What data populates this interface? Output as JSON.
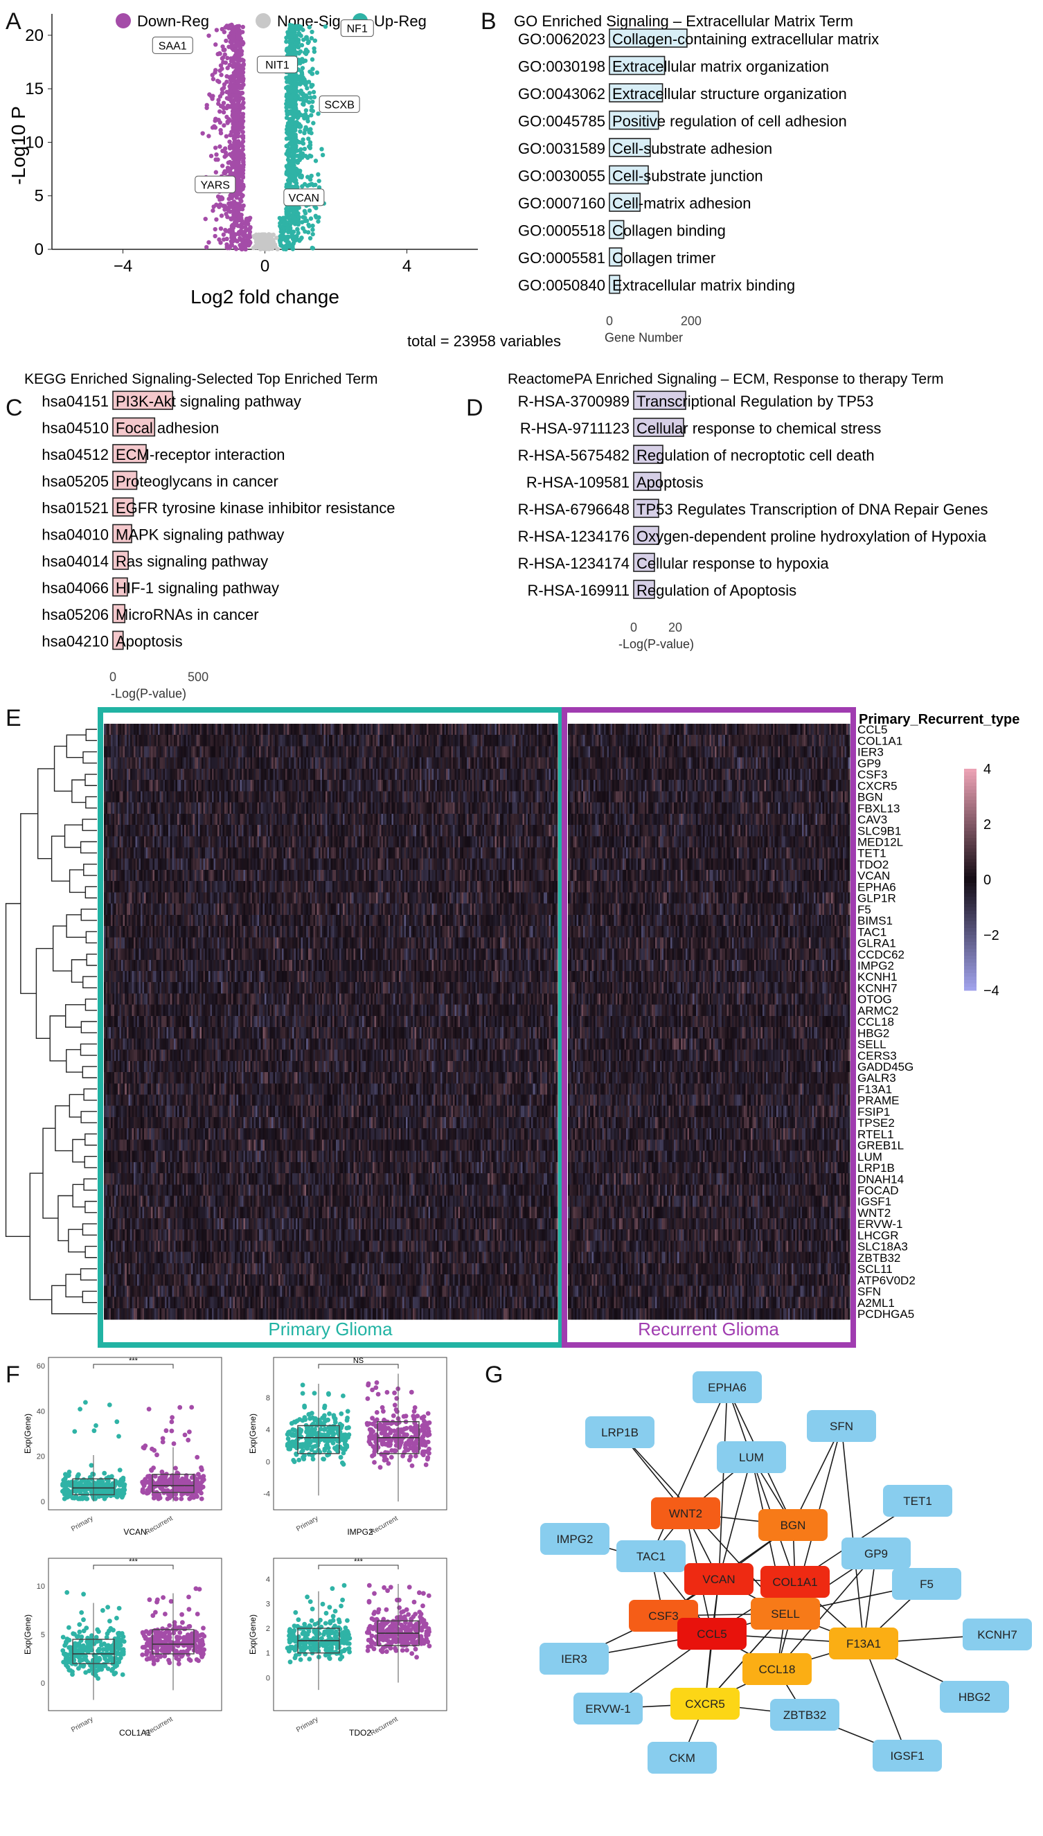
{
  "colors": {
    "down": "#a44ca8",
    "none": "#c8c8c8",
    "up": "#2fb3a6",
    "go_bar": "#d8eef6",
    "kegg_bar": "#f4c8cc",
    "reactome_bar": "#d6cfe6",
    "primary_border": "#21b3a3",
    "recurrent_border": "#a03cb0",
    "net_node_low": "#88cdee",
    "net_node_high": "#e8120c",
    "net_node_mid": "#f77a18",
    "net_node_yellow": "#fcd616"
  },
  "panels": {
    "a": "A",
    "b": "B",
    "c": "C",
    "d": "D",
    "e": "E",
    "f": "F",
    "g": "G"
  },
  "chart_data": [
    {
      "id": "A",
      "type": "scatter",
      "legend": [
        "Down-Reg",
        "None-Sig",
        "Up-Reg"
      ],
      "legend_position": "top",
      "xlabel": "Log2 fold change",
      "ylabel": "-Log10 P",
      "xlim": [
        -6,
        6
      ],
      "ylim": [
        0,
        22
      ],
      "xticks": [
        -4,
        0,
        4
      ],
      "yticks": [
        0,
        5,
        10,
        15,
        20
      ],
      "note": "total = 23958 variables",
      "labels": [
        {
          "gene": "SAA1",
          "x": -2.6,
          "y": 19.0
        },
        {
          "gene": "NIT1",
          "x": 0.35,
          "y": 17.2
        },
        {
          "gene": "NF1",
          "x": 2.6,
          "y": 20.6
        },
        {
          "gene": "SCXB",
          "x": 2.1,
          "y": 13.5
        },
        {
          "gene": "YARS",
          "x": -1.4,
          "y": 6.0
        },
        {
          "gene": "VCAN",
          "x": 1.1,
          "y": 4.8
        }
      ]
    },
    {
      "id": "B",
      "type": "bar",
      "title": "GO Enriched Signaling – Extracellular Matrix Term",
      "xlabel": "Gene Number",
      "xticks": [
        0,
        200
      ],
      "xlim": [
        0,
        280
      ],
      "categories": [
        "GO:0062023",
        "GO:0030198",
        "GO:0043062",
        "GO:0045785",
        "GO:0031589",
        "GO:0030055",
        "GO:0007160",
        "GO:0005518",
        "GO:0005581",
        "GO:0050840"
      ],
      "terms": [
        "Collagen-containing extracellular matrix",
        "Extracellular matrix organization",
        "Extracellular structure organization",
        "Positive regulation of cell adhesion",
        "Cell-substrate adhesion",
        "Cell-substrate junction",
        "Cell-matrix adhesion",
        "Collagen binding",
        "Collagen trimer",
        "Extracellular matrix binding"
      ],
      "values": [
        190,
        135,
        130,
        120,
        100,
        95,
        75,
        35,
        30,
        25
      ]
    },
    {
      "id": "C",
      "type": "bar",
      "title": "KEGG Enriched Signaling-Selected Top Enriched Term",
      "xlabel": "-Log(P-value)",
      "xticks": [
        0,
        500
      ],
      "xlim": [
        0,
        650
      ],
      "categories": [
        "hsa04151",
        "hsa04510",
        "hsa04512",
        "hsa05205",
        "hsa01521",
        "hsa04010",
        "hsa04014",
        "hsa04066",
        "hsa05206",
        "hsa04210"
      ],
      "terms": [
        "PI3K-Akt signaling pathway",
        "Focal adhesion",
        "ECM-receptor interaction",
        "Proteoglycans in cancer",
        "EGFR tyrosine kinase inhibitor resistance",
        "MAPK signaling pathway",
        "Ras signaling pathway",
        "HIF-1 signaling pathway",
        "MicroRNAs in cancer",
        "Apoptosis"
      ],
      "values": [
        350,
        245,
        195,
        140,
        120,
        110,
        90,
        85,
        70,
        60
      ]
    },
    {
      "id": "D",
      "type": "bar",
      "title": "ReactomePA Enriched Signaling – ECM, Response to therapy Term",
      "xlabel": "-Log(P-value)",
      "xticks": [
        0,
        20
      ],
      "xlim": [
        0,
        30
      ],
      "categories": [
        "R-HSA-3700989",
        "R-HSA-9711123",
        "R-HSA-5675482",
        "R-HSA-109581",
        "R-HSA-6796648",
        "R-HSA-1234176",
        "R-HSA-1234174",
        "R-HSA-169911"
      ],
      "terms": [
        "Transcriptional Regulation by TP53",
        "Cellular response to chemical stress",
        "Regulation of necroptotic cell death",
        "Apoptosis",
        "TP53 Regulates Transcription of DNA Repair Genes",
        "Oxygen-dependent proline hydroxylation of Hypoxia",
        "Cellular response to hypoxia",
        "Regulation of Apoptosis"
      ],
      "values": [
        25,
        24,
        14,
        13,
        12,
        12,
        10,
        10
      ]
    },
    {
      "id": "E",
      "type": "heatmap",
      "annotation_title": "Primary_Recurrent_type",
      "groups": [
        "Primary Glioma",
        "Recurrent Glioma"
      ],
      "colorbar_ticks": [
        4,
        2,
        0,
        -2,
        -4
      ],
      "genes": [
        "CCL5",
        "COL1A1",
        "IER3",
        "GP9",
        "CSF3",
        "CXCR5",
        "BGN",
        "FBXL13",
        "CAV3",
        "SLC9B1",
        "MED12L",
        "TET1",
        "TDO2",
        "VCAN",
        "EPHA6",
        "GLP1R",
        "F5",
        "BIMS1",
        "TAC1",
        "GLRA1",
        "CCDC62",
        "IMPG2",
        "KCNH1",
        "KCNH7",
        "OTOG",
        "ARMC2",
        "CCL18",
        "HBG2",
        "SELL",
        "CERS3",
        "GADD45G",
        "GALR3",
        "F13A1",
        "PRAME",
        "FSIP1",
        "TPSE2",
        "RTEL1",
        "GREB1L",
        "LUM",
        "LRP1B",
        "DNAH14",
        "FOCAD",
        "IGSF1",
        "WNT2",
        "ERVW-1",
        "LHCGR",
        "SLC18A3",
        "ZBTB32",
        "SCL11",
        "ATP6V0D2",
        "SFN",
        "A2ML1",
        "PCDHGA5"
      ]
    },
    {
      "id": "F",
      "type": "box",
      "ylabel": "Exp(Gene)",
      "groups": [
        "Primary",
        "Recurrent"
      ],
      "plots": [
        {
          "gene": "VCAN",
          "sig": "***",
          "ylim": [
            0,
            60
          ],
          "yticks": [
            0,
            20,
            40,
            60
          ],
          "primary": {
            "q1": 3,
            "median": 6,
            "q3": 10
          },
          "recurrent": {
            "q1": 4,
            "median": 7,
            "q3": 12
          }
        },
        {
          "gene": "IMPG2",
          "sig": "NS",
          "ylim": [
            -5,
            12
          ],
          "yticks": [
            -4,
            0,
            4,
            8
          ],
          "primary": {
            "q1": 1,
            "median": 3,
            "q3": 4.5
          },
          "recurrent": {
            "q1": 1,
            "median": 3,
            "q3": 5
          }
        },
        {
          "gene": "COL1A1",
          "sig": "***",
          "ylim": [
            -2,
            12
          ],
          "yticks": [
            0,
            5,
            10
          ],
          "primary": {
            "q1": 2,
            "median": 3,
            "q3": 4.5
          },
          "recurrent": {
            "q1": 3,
            "median": 4,
            "q3": 5.5
          }
        },
        {
          "gene": "TDO2",
          "sig": "***",
          "ylim": [
            -1,
            4.5
          ],
          "yticks": [
            0,
            1,
            2,
            3,
            4
          ],
          "primary": {
            "q1": 1,
            "median": 1.5,
            "q3": 2
          },
          "recurrent": {
            "q1": 1.3,
            "median": 1.8,
            "q3": 2.3
          }
        }
      ]
    },
    {
      "id": "G",
      "type": "network",
      "nodes": [
        {
          "name": "EPHA6",
          "level": "low"
        },
        {
          "name": "LRP1B",
          "level": "low"
        },
        {
          "name": "SFN",
          "level": "low"
        },
        {
          "name": "LUM",
          "level": "low"
        },
        {
          "name": "TET1",
          "level": "low"
        },
        {
          "name": "WNT2",
          "level": "red2"
        },
        {
          "name": "BGN",
          "level": "orange"
        },
        {
          "name": "IMPG2",
          "level": "low"
        },
        {
          "name": "TAC1",
          "level": "low"
        },
        {
          "name": "GP9",
          "level": "low"
        },
        {
          "name": "VCAN",
          "level": "red1"
        },
        {
          "name": "COL1A1",
          "level": "red1"
        },
        {
          "name": "F5",
          "level": "low"
        },
        {
          "name": "CSF3",
          "level": "red2"
        },
        {
          "name": "SELL",
          "level": "orange"
        },
        {
          "name": "CCL5",
          "level": "red0"
        },
        {
          "name": "F13A1",
          "level": "amber"
        },
        {
          "name": "KCNH7",
          "level": "low"
        },
        {
          "name": "IER3",
          "level": "low"
        },
        {
          "name": "CCL18",
          "level": "amber"
        },
        {
          "name": "ERVW-1",
          "level": "low"
        },
        {
          "name": "CXCR5",
          "level": "yellow"
        },
        {
          "name": "HBG2",
          "level": "low"
        },
        {
          "name": "ZBTB32",
          "level": "low"
        },
        {
          "name": "IGSF1",
          "level": "low"
        },
        {
          "name": "CKM",
          "level": "low"
        }
      ]
    }
  ]
}
